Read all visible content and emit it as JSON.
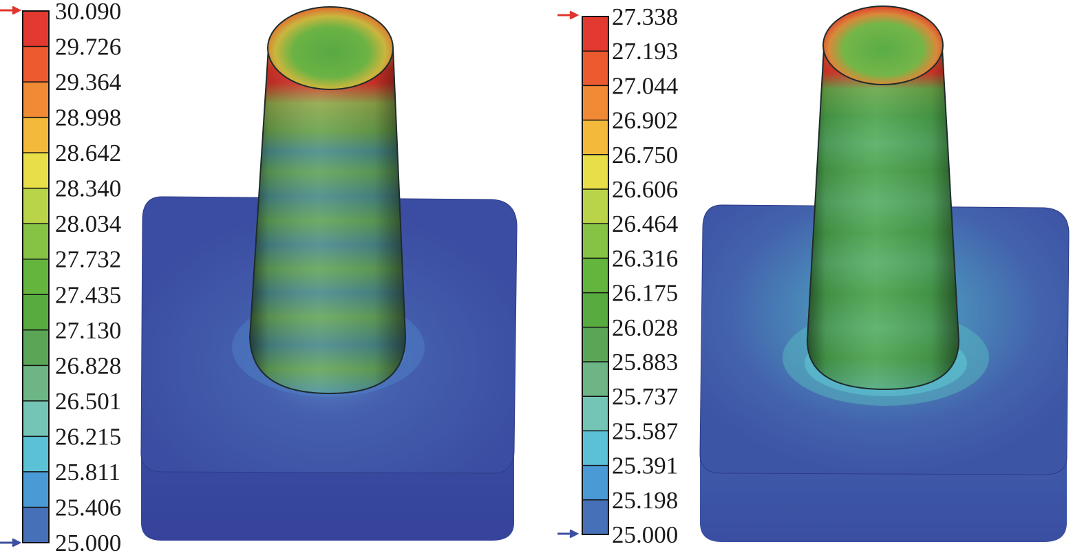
{
  "legends": [
    {
      "id": "left",
      "labels": [
        "30.090",
        "29.726",
        "29.364",
        "28.998",
        "28.642",
        "28.340",
        "28.034",
        "27.732",
        "27.435",
        "27.130",
        "26.828",
        "26.501",
        "26.215",
        "25.811",
        "25.406",
        "25.000"
      ]
    },
    {
      "id": "right",
      "labels": [
        "27.338",
        "27.193",
        "27.044",
        "26.902",
        "26.750",
        "26.606",
        "26.464",
        "26.316",
        "26.175",
        "26.028",
        "25.883",
        "25.737",
        "25.587",
        "25.391",
        "25.198",
        "25.000"
      ]
    }
  ],
  "band_colors": [
    "#e23a30",
    "#ec5a2f",
    "#f08a34",
    "#f2b93a",
    "#e8df48",
    "#b9d448",
    "#86c244",
    "#64b53e",
    "#57ab3f",
    "#5aa656",
    "#6db585",
    "#74c5b6",
    "#5bc1d7",
    "#4a9ad6",
    "#4670b7",
    "#3f55a6"
  ],
  "max_marker_color": "#e0342c",
  "min_marker_color": "#3c4fa0"
}
